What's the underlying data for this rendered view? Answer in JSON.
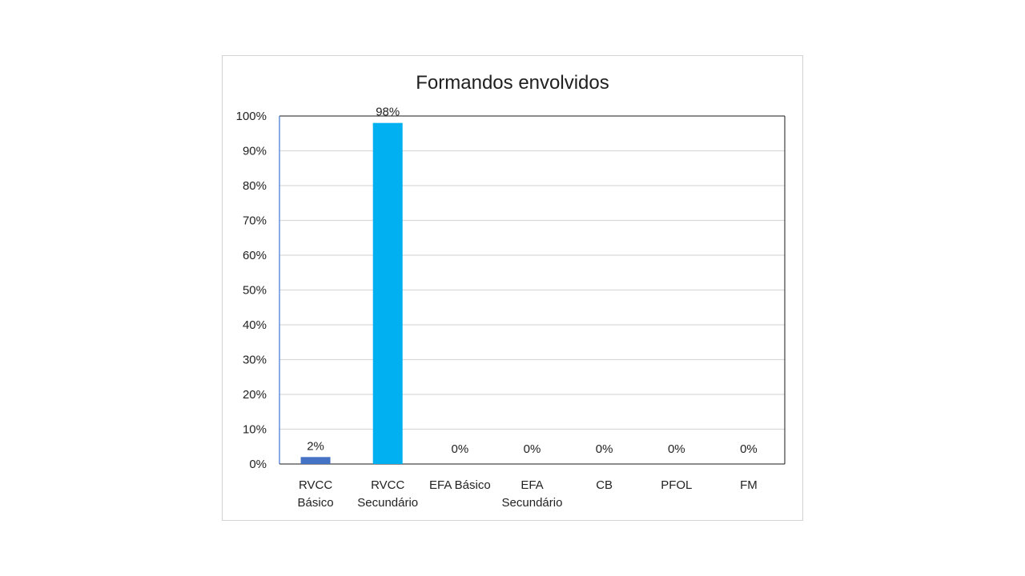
{
  "chart_data": {
    "type": "bar",
    "title": "Formandos envolvidos",
    "xlabel": "",
    "ylabel": "",
    "categories": [
      "RVCC Básico",
      "RVCC Secundário",
      "EFA Básico",
      "EFA Secundário",
      "CB",
      "PFOL",
      "FM"
    ],
    "category_lines": [
      [
        "RVCC",
        "Básico"
      ],
      [
        "RVCC",
        "Secundário"
      ],
      [
        "EFA Básico"
      ],
      [
        "EFA",
        "Secundário"
      ],
      [
        "CB"
      ],
      [
        "PFOL"
      ],
      [
        "FM"
      ]
    ],
    "values": [
      2,
      98,
      0,
      0,
      0,
      0,
      0
    ],
    "data_labels": [
      "2%",
      "98%",
      "0%",
      "0%",
      "0%",
      "0%",
      "0%"
    ],
    "bar_colors": [
      "#4472c4",
      "#00b0f0",
      "#4472c4",
      "#4472c4",
      "#4472c4",
      "#4472c4",
      "#4472c4"
    ],
    "ylim": [
      0,
      100
    ],
    "yticks": [
      0,
      10,
      20,
      30,
      40,
      50,
      60,
      70,
      80,
      90,
      100
    ],
    "ytick_labels": [
      "0%",
      "10%",
      "20%",
      "30%",
      "40%",
      "50%",
      "60%",
      "70%",
      "80%",
      "90%",
      "100%"
    ],
    "grid": true,
    "legend": "none"
  }
}
